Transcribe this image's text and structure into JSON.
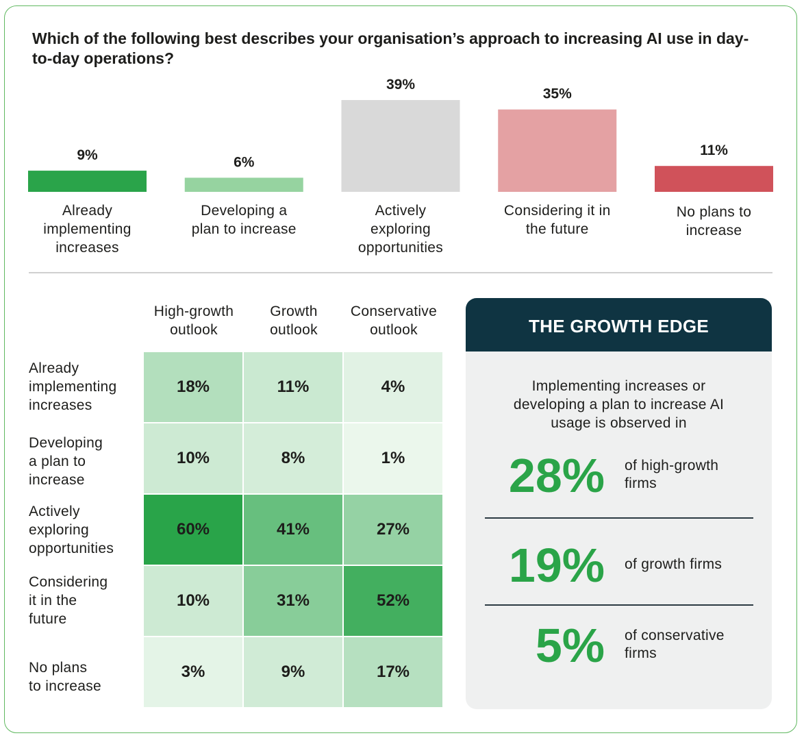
{
  "question": "Which of the following best describes your organisation’s approach to increasing AI use in day-to-day operations?",
  "chart_data": {
    "type": "bar",
    "title": "Which of the following best describes your organisation’s approach to increasing AI use in day-to-day operations?",
    "categories": [
      "Already implementing increases",
      "Developing a plan to increase",
      "Actively exploring opportunities",
      "Considering it in the future",
      "No plans to increase"
    ],
    "category_lines": [
      [
        "Already",
        "implementing",
        "increases"
      ],
      [
        "Developing a",
        "plan to increase"
      ],
      [
        "Actively",
        "exploring",
        "opportunities"
      ],
      [
        "Considering it in",
        "the future"
      ],
      [
        "No plans to",
        "increase"
      ]
    ],
    "values": [
      9,
      6,
      39,
      35,
      11
    ],
    "value_labels": [
      "9%",
      "6%",
      "39%",
      "35%",
      "11%"
    ],
    "colors": [
      "#2aa44a",
      "#96d3a0",
      "#d9d9d9",
      "#e4a1a3",
      "#d0525a"
    ],
    "unit": "%",
    "ylim": [
      0,
      39
    ],
    "grid": false,
    "xlabel": "",
    "ylabel": ""
  },
  "heatmap": {
    "columns": [
      {
        "lines": [
          "High-growth",
          "outlook"
        ]
      },
      {
        "lines": [
          "Growth",
          "outlook"
        ]
      },
      {
        "lines": [
          "Conservative",
          "outlook"
        ]
      }
    ],
    "rows": [
      {
        "lines": [
          "Already",
          "implementing",
          "increases"
        ],
        "values": [
          18,
          11,
          4
        ],
        "labels": [
          "18%",
          "11%",
          "4%"
        ]
      },
      {
        "lines": [
          "Developing",
          "a plan to",
          "increase"
        ],
        "values": [
          10,
          8,
          1
        ],
        "labels": [
          "10%",
          "8%",
          "1%"
        ]
      },
      {
        "lines": [
          "Actively",
          "exploring",
          "opportunities"
        ],
        "values": [
          60,
          41,
          27
        ],
        "labels": [
          "60%",
          "41%",
          "27%"
        ]
      },
      {
        "lines": [
          "Considering",
          "it in the",
          "future"
        ],
        "values": [
          10,
          31,
          52
        ],
        "labels": [
          "10%",
          "31%",
          "52%"
        ]
      },
      {
        "lines": [
          "No plans",
          "to increase"
        ],
        "values": [
          3,
          9,
          17
        ],
        "labels": [
          "3%",
          "9%",
          "17%"
        ]
      }
    ],
    "color_scale": {
      "low": "#eef8ef",
      "high": "#29a449",
      "min": 0,
      "max": 60
    }
  },
  "growth_edge": {
    "title": "THE GROWTH EDGE",
    "intro": [
      "Implementing increases or",
      "developing a plan to increase AI",
      "usage is observed in"
    ],
    "stats": [
      {
        "value": "28%",
        "label": [
          "of high-growth",
          "firms"
        ]
      },
      {
        "value": "19%",
        "label": [
          "of growth firms"
        ]
      },
      {
        "value": "5%",
        "label": [
          "of conservative",
          "firms"
        ]
      }
    ]
  },
  "colors": {
    "frame": "#5fb85f",
    "accent_green": "#2aa448",
    "panel_header": "#0f3442",
    "panel_bg": "#eff0f0"
  }
}
